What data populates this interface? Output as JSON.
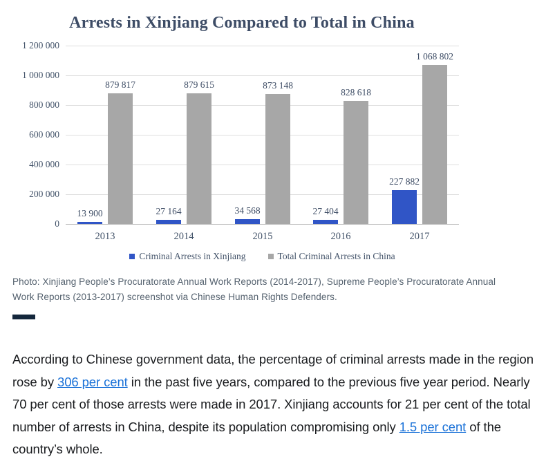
{
  "chart_data": {
    "type": "bar",
    "title": "Arrests in Xinjiang Compared to Total in China",
    "categories": [
      "2013",
      "2014",
      "2015",
      "2016",
      "2017"
    ],
    "series": [
      {
        "name": "Criminal Arrests in Xinjiang",
        "color": "#3055C6",
        "values": [
          13900,
          27164,
          34568,
          27404,
          227882
        ],
        "value_labels": [
          "13 900",
          "27 164",
          "34 568",
          "27 404",
          "227 882"
        ]
      },
      {
        "name": "Total Criminal Arrests in China",
        "color": "#A7A7A7",
        "values": [
          879817,
          879615,
          873148,
          828618,
          1068802
        ],
        "value_labels": [
          "879 817",
          "879 615",
          "873 148",
          "828 618",
          "1 068 802"
        ]
      }
    ],
    "y_axis": {
      "ticks": [
        "1 200 000",
        "1 000 000",
        "800 000",
        "600 000",
        "400 000",
        "200 000",
        "0"
      ],
      "min": 0,
      "max": 1200000
    },
    "grid": true,
    "legend_position": "bottom",
    "xlabel": "",
    "ylabel": ""
  },
  "caption": {
    "line1": "Photo: Xinjiang People’s Procuratorate Annual Work Reports (2014-2017), Supreme People’s Procuratorate Annual",
    "line2": "Work Reports (2013-2017) screenshot via Chinese Human Rights Defenders."
  },
  "article": {
    "link_color": "#1B72D8",
    "paragraph_segments": [
      {
        "text": "According to Chinese government data, the percentage of criminal arrests made in the region rose by ",
        "link": false
      },
      {
        "text": "306 per cent",
        "link": true
      },
      {
        "text": " in the past five years, compared to the previous five year period. Nearly 70 per cent of those arrests were made in 2017. Xinjiang accounts for 21 per cent of the total number of arrests in China, despite its population compromising only ",
        "link": false
      },
      {
        "text": "1.5 per cent",
        "link": true
      },
      {
        "text": " of the country’s whole.",
        "link": false
      }
    ]
  }
}
